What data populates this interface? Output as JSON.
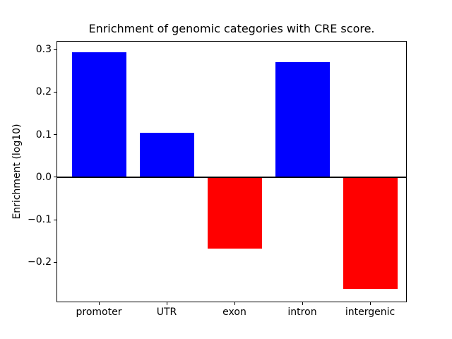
{
  "figure": {
    "background": "#ffffff"
  },
  "chart_data": {
    "type": "bar",
    "title": "Enrichment of genomic categories with CRE score.",
    "xlabel": "",
    "ylabel": "Enrichment (log10)",
    "categories": [
      "promoter",
      "UTR",
      "exon",
      "intron",
      "intergenic"
    ],
    "values": [
      0.294,
      0.104,
      -0.168,
      0.271,
      -0.262
    ],
    "positive_color": "#0000ff",
    "negative_color": "#ff0000",
    "bar_colors": [
      "#0000ff",
      "#0000ff",
      "#ff0000",
      "#0000ff",
      "#ff0000"
    ],
    "ylim": [
      -0.294,
      0.32
    ],
    "yticks": [
      0.3,
      0.2,
      0.1,
      0.0,
      -0.1,
      -0.2
    ],
    "ytick_labels": [
      "0.3",
      "0.2",
      "0.1",
      "0.0",
      "−0.1",
      "−0.2"
    ],
    "grid": false,
    "legend": null,
    "zero_line": true,
    "axis_color": "#000000",
    "plot_background": "#ffffff"
  }
}
